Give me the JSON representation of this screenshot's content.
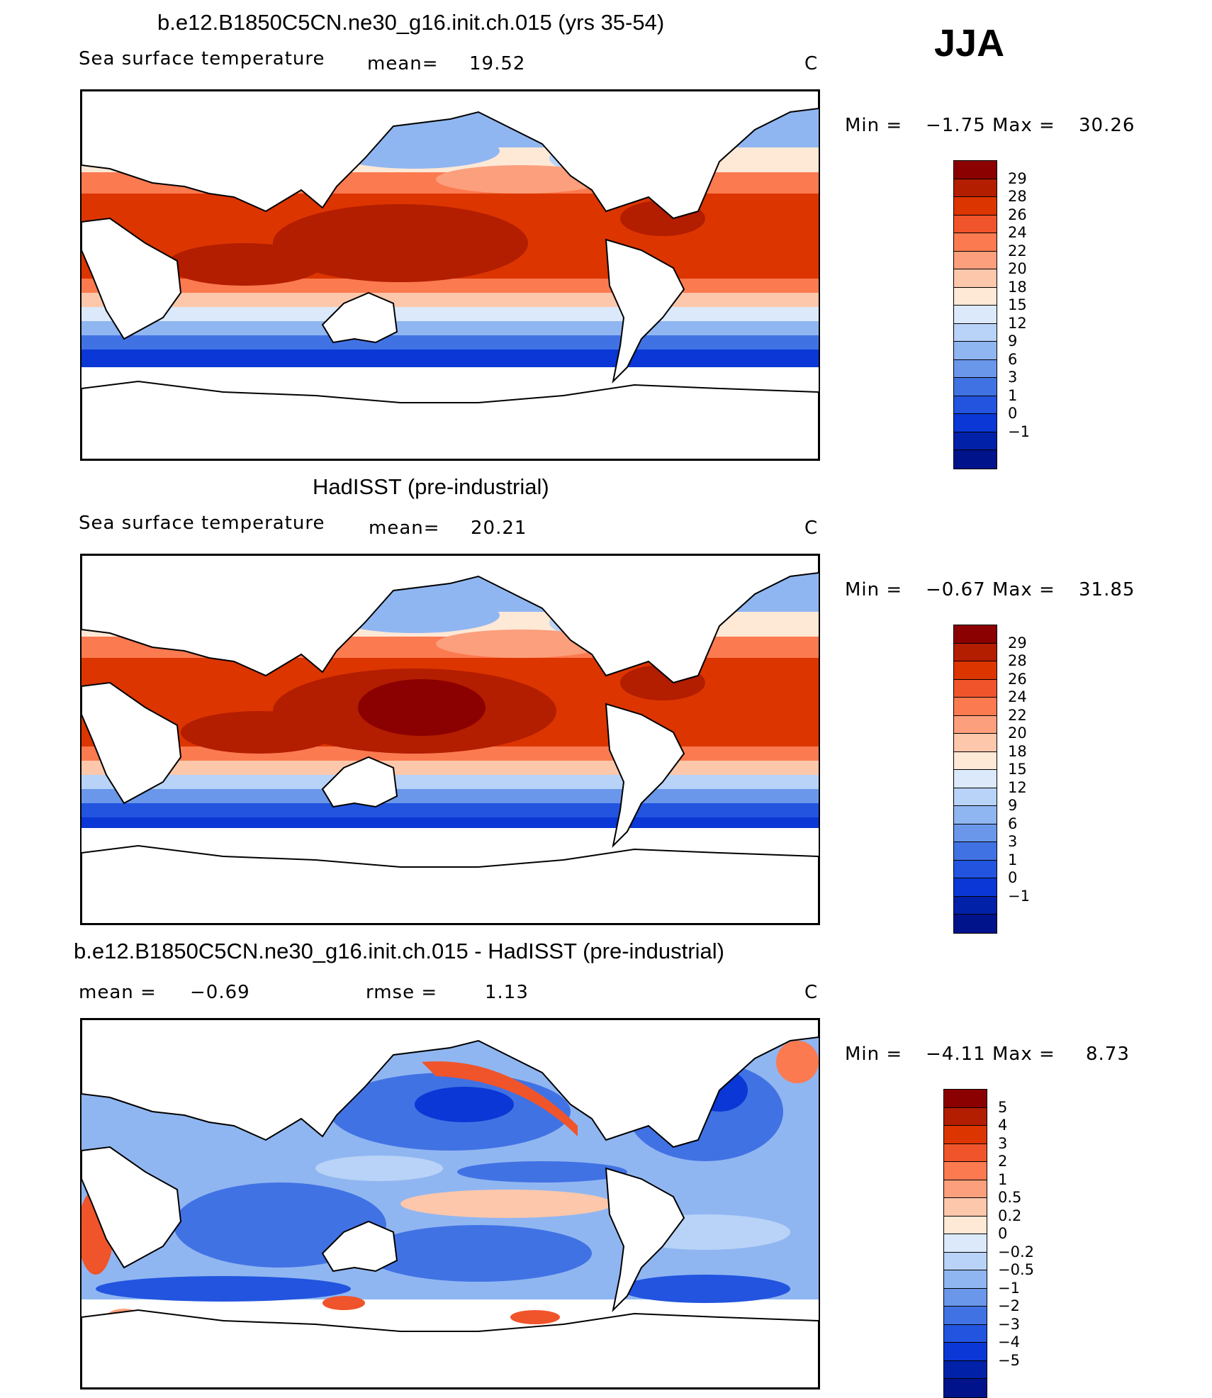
{
  "season": "JJA",
  "panels": [
    {
      "title": "b.e12.B1850C5CN.ne30_g16.init.ch.015 (yrs 35-54)",
      "variable": "Sea surface temperature",
      "stat_left": "mean=",
      "stat_left_value": "19.52",
      "stat_mid": "",
      "stat_mid_value": "",
      "unit": "C",
      "minmax": {
        "min_label": "Min =",
        "min": "−1.75",
        "max_label": "Max =",
        "max": "30.26"
      },
      "colorbar": {
        "colors": [
          "#8b0000",
          "#b31d00",
          "#dc3500",
          "#f0542a",
          "#fb7a50",
          "#fc9f7c",
          "#fdc7ab",
          "#fee8d6",
          "#dbe9fb",
          "#b8d3f7",
          "#90b6f1",
          "#6a97ea",
          "#4172e4",
          "#2254df",
          "#0a37d5",
          "#0021a8",
          "#00138a"
        ],
        "labels": [
          "29",
          "28",
          "26",
          "24",
          "22",
          "20",
          "18",
          "15",
          "12",
          "9",
          "6",
          "3",
          "1",
          "0",
          "−1"
        ]
      }
    },
    {
      "title": "HadISST (pre-industrial)",
      "variable": "Sea surface temperature",
      "stat_left": "mean=",
      "stat_left_value": "20.21",
      "stat_mid": "",
      "stat_mid_value": "",
      "unit": "C",
      "minmax": {
        "min_label": "Min =",
        "min": "−0.67",
        "max_label": "Max =",
        "max": "31.85"
      },
      "colorbar": {
        "colors": [
          "#8b0000",
          "#b31d00",
          "#dc3500",
          "#f0542a",
          "#fb7a50",
          "#fc9f7c",
          "#fdc7ab",
          "#fee8d6",
          "#dbe9fb",
          "#b8d3f7",
          "#90b6f1",
          "#6a97ea",
          "#4172e4",
          "#2254df",
          "#0a37d5",
          "#0021a8",
          "#00138a"
        ],
        "labels": [
          "29",
          "28",
          "26",
          "24",
          "22",
          "20",
          "18",
          "15",
          "12",
          "9",
          "6",
          "3",
          "1",
          "0",
          "−1"
        ]
      }
    },
    {
      "title": "b.e12.B1850C5CN.ne30_g16.init.ch.015 - HadISST (pre-industrial)",
      "variable": "",
      "stat_left": "mean =",
      "stat_left_value": "−0.69",
      "stat_mid": "rmse =",
      "stat_mid_value": "1.13",
      "unit": "C",
      "minmax": {
        "min_label": "Min =",
        "min": "−4.11",
        "max_label": "Max =",
        "max": "8.73"
      },
      "colorbar": {
        "colors": [
          "#8b0000",
          "#b31d00",
          "#dc3500",
          "#f0542a",
          "#fb7a50",
          "#fc9f7c",
          "#fdc7ab",
          "#fee8d6",
          "#dbe9fb",
          "#b8d3f7",
          "#90b6f1",
          "#6a97ea",
          "#4172e4",
          "#2254df",
          "#0a37d5",
          "#0021a8",
          "#00138a"
        ],
        "labels": [
          "5",
          "4",
          "3",
          "2",
          "1",
          "0.5",
          "0.2",
          "0",
          "−0.2",
          "−0.5",
          "−1",
          "−2",
          "−3",
          "−4",
          "−5"
        ]
      }
    }
  ]
}
